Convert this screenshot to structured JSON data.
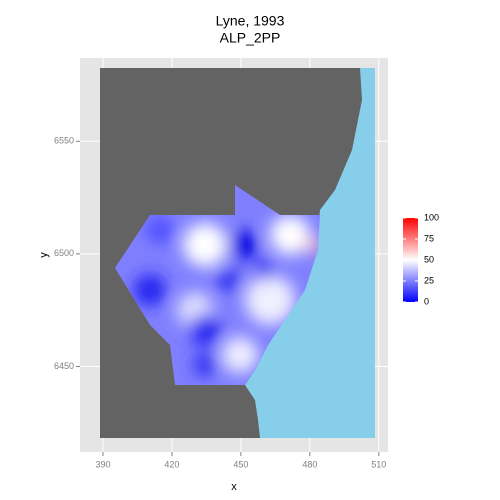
{
  "chart_data": {
    "type": "raster-map",
    "title": "Lyne, 1993",
    "subtitle": "ALP_2PP",
    "x_label": "x",
    "y_label": "y",
    "xlim": [
      380,
      514
    ],
    "ylim": [
      6412,
      6587
    ],
    "xticks": [
      390,
      420,
      450,
      480,
      510
    ],
    "yticks": [
      6450,
      6500,
      6550
    ],
    "grid": true,
    "colorbar": {
      "limits": [
        0,
        100
      ],
      "ticks": [
        0,
        25,
        50,
        75,
        100
      ],
      "colors": [
        "#0000ff",
        "#ffffff",
        "#ff0000"
      ]
    }
  }
}
